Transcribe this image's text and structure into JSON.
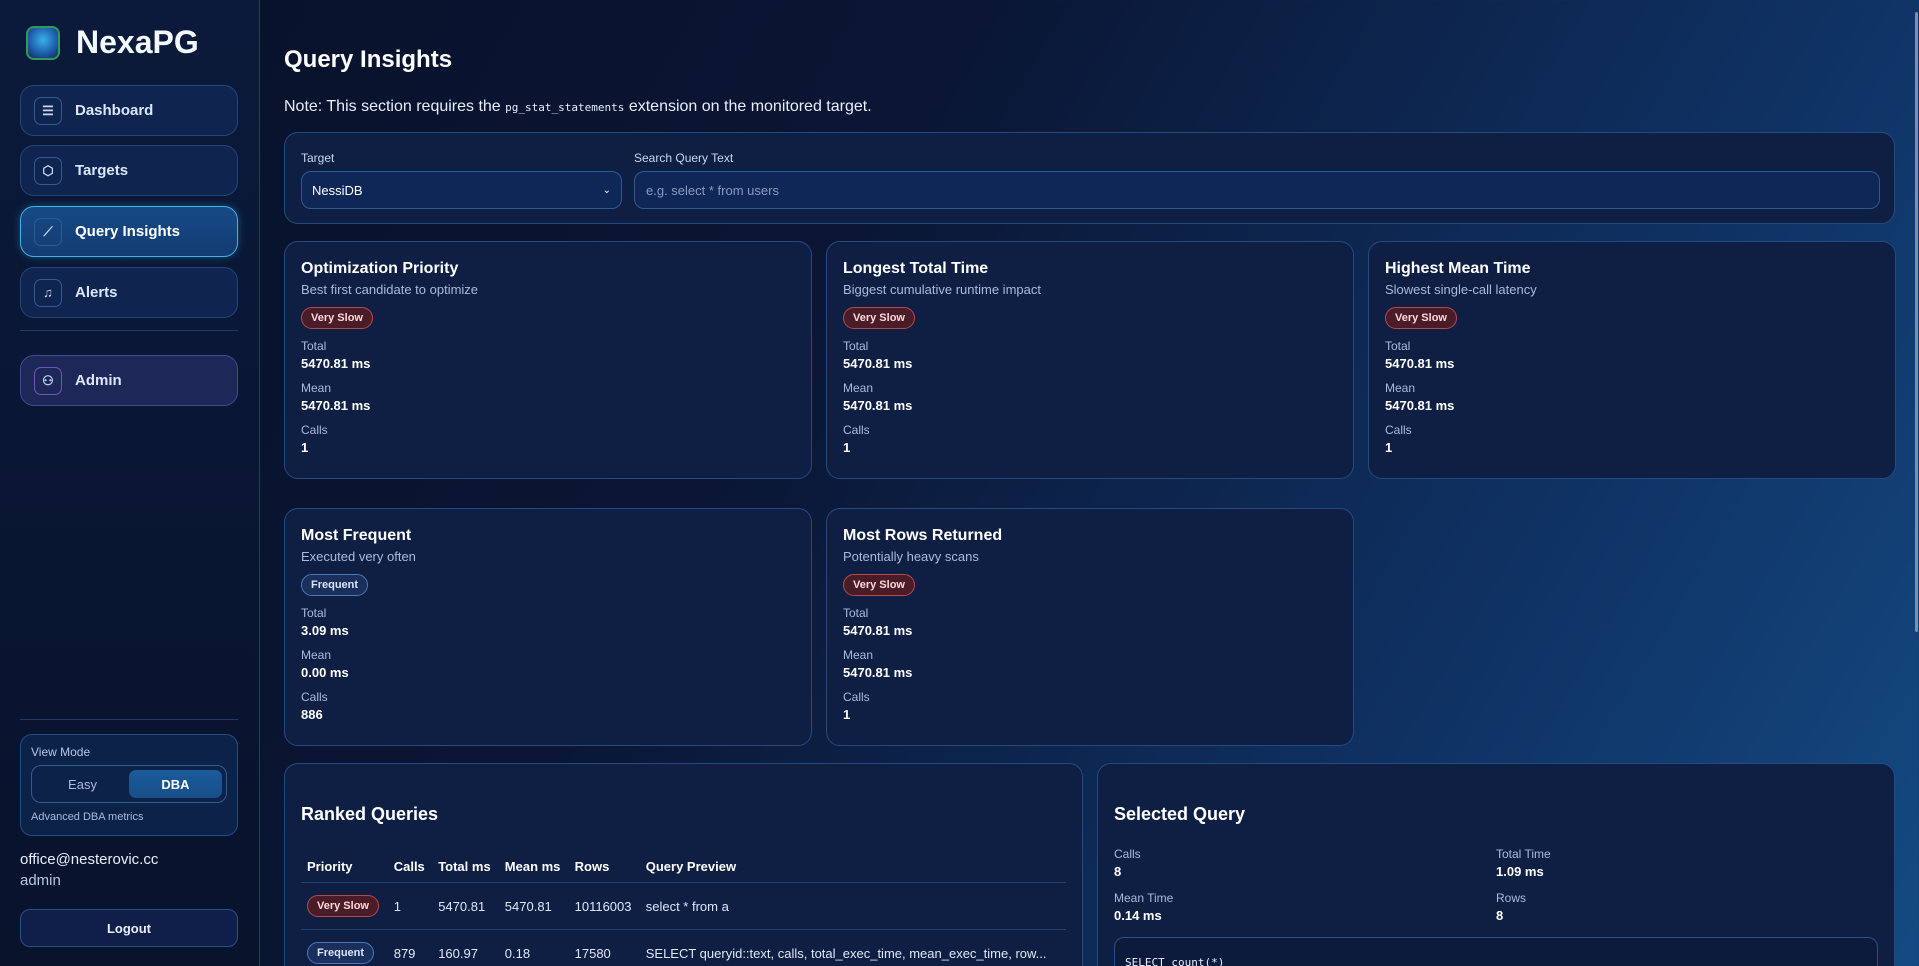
{
  "app": {
    "name": "NexaPG"
  },
  "sidebar": {
    "items": [
      {
        "label": "Dashboard",
        "icon": "database-icon"
      },
      {
        "label": "Targets",
        "icon": "cube-icon"
      },
      {
        "label": "Query Insights",
        "icon": "chart-line-icon",
        "active": true
      },
      {
        "label": "Alerts",
        "icon": "bell-icon"
      },
      {
        "label": "Admin",
        "icon": "user-icon"
      }
    ],
    "view_mode": {
      "label": "View Mode",
      "options": [
        "Easy",
        "DBA"
      ],
      "selected": "DBA",
      "description": "Advanced DBA metrics"
    },
    "user": {
      "email": "office@nesterovic.cc",
      "role": "admin"
    },
    "logout": "Logout"
  },
  "page": {
    "title": "Query Insights",
    "note_prefix": "Note: This section requires the",
    "note_code": "pg_stat_statements",
    "note_suffix": "extension on the monitored target."
  },
  "filters": {
    "target_label": "Target",
    "target_value": "NessiDB",
    "search_label": "Search Query Text",
    "search_placeholder": "e.g. select * from users",
    "search_value": ""
  },
  "labels": {
    "total": "Total",
    "mean": "Mean",
    "calls": "Calls"
  },
  "cards": [
    {
      "title": "Optimization Priority",
      "subtitle": "Best first candidate to optimize",
      "badge": "Very Slow",
      "total": "5470.81 ms",
      "mean": "5470.81 ms",
      "calls": "1"
    },
    {
      "title": "Longest Total Time",
      "subtitle": "Biggest cumulative runtime impact",
      "badge": "Very Slow",
      "total": "5470.81 ms",
      "mean": "5470.81 ms",
      "calls": "1"
    },
    {
      "title": "Highest Mean Time",
      "subtitle": "Slowest single-call latency",
      "badge": "Very Slow",
      "total": "5470.81 ms",
      "mean": "5470.81 ms",
      "calls": "1"
    },
    {
      "title": "Most Frequent",
      "subtitle": "Executed very often",
      "badge": "Frequent",
      "total": "3.09 ms",
      "mean": "0.00 ms",
      "calls": "886"
    },
    {
      "title": "Most Rows Returned",
      "subtitle": "Potentially heavy scans",
      "badge": "Very Slow",
      "total": "5470.81 ms",
      "mean": "5470.81 ms",
      "calls": "1"
    }
  ],
  "ranked": {
    "title": "Ranked Queries",
    "columns": [
      "Priority",
      "Calls",
      "Total ms",
      "Mean ms",
      "Rows",
      "Query Preview"
    ],
    "rows": [
      {
        "priority": "Very Slow",
        "calls": "1",
        "total": "5470.81",
        "mean": "5470.81",
        "rows": "10116003",
        "preview": "select * from a"
      },
      {
        "priority": "Frequent",
        "calls": "879",
        "total": "160.97",
        "mean": "0.18",
        "rows": "17580",
        "preview": "SELECT queryid::text, calls, total_exec_time, mean_exec_time, row..."
      }
    ]
  },
  "selected": {
    "title": "Selected Query",
    "calls_label": "Calls",
    "calls": "8",
    "total_label": "Total Time",
    "total": "1.09 ms",
    "mean_label": "Mean Time",
    "mean": "0.14 ms",
    "rows_label": "Rows",
    "rows": "8",
    "query": "SELECT count(*)"
  },
  "colors": {
    "accent": "#3fb2e6",
    "very_slow": "#b54a4a",
    "frequent": "#4a78b8"
  }
}
